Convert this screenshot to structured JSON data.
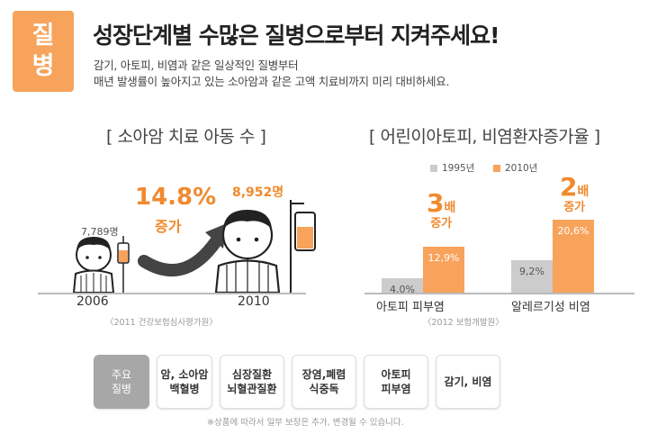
{
  "badge": {
    "line1": "질",
    "line2": "병"
  },
  "headline": "성장단계별 수많은 질병으로부터 지켜주세요!",
  "subtitle_lines": [
    "감기, 아토피, 비염과 같은 일상적인 질병부터",
    "매년 발생률이 높아지고 있는 소아암과 같은 고액 치료비까지 미리 대비하세요."
  ],
  "left_section": {
    "title": "[ 소아암 치료 아동 수 ]",
    "increase_pct": "14.8%",
    "increase_word": "증가",
    "count_2006": "7,789명",
    "count_2010": "8,952명",
    "year_2006": "2006",
    "year_2010": "2010",
    "source": "〈2011 건강보험심사평가원〉"
  },
  "chart_data": {
    "type": "bar",
    "title": "[ 어린이아토피, 비염환자증가율 ]",
    "categories": [
      "아토피 피부염",
      "알레르기성 비염"
    ],
    "series": [
      {
        "name": "1995년",
        "color": "#cccccc",
        "values": [
          4.0,
          9.2
        ],
        "labels": [
          "4,0%",
          "9,2%"
        ]
      },
      {
        "name": "2010년",
        "color": "#f7a35c",
        "values": [
          12.9,
          20.6
        ],
        "labels": [
          "12,9%",
          "20,6%"
        ]
      }
    ],
    "multipliers": [
      {
        "num": "3",
        "unit": "배",
        "word": "증가"
      },
      {
        "num": "2",
        "unit": "배",
        "word": "증가"
      }
    ],
    "ylim": [
      0,
      25
    ],
    "source": "〈2012 보험개발원〉"
  },
  "tabs": [
    {
      "label": "주요\n질병"
    },
    {
      "label": "암, 소아암\n백혈병"
    },
    {
      "label": "심장질환\n뇌혈관질환"
    },
    {
      "label": "장염,폐렴\n식중독"
    },
    {
      "label": "아토피\n피부염"
    },
    {
      "label": "감기, 비염"
    }
  ],
  "footnote": "※상품에 따라서 일부 보장은 추가, 변경될 수 있습니다.",
  "colors": {
    "accent": "#f7a35c",
    "accent_text": "#f08a2e",
    "gray_bar": "#cccccc"
  }
}
